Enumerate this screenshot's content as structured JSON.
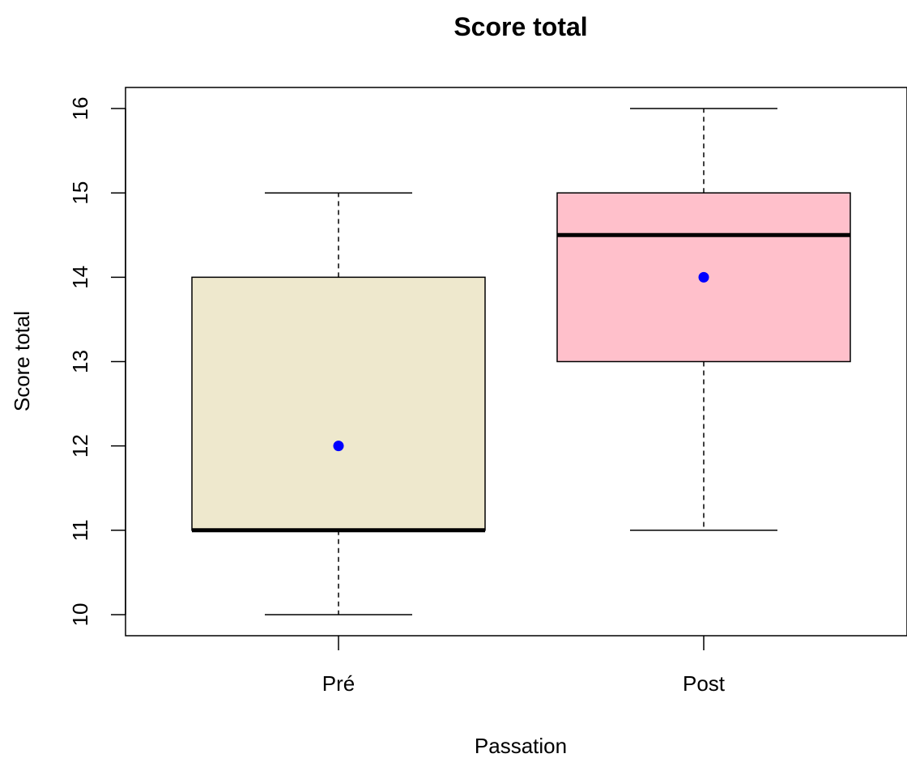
{
  "chart_data": {
    "type": "boxplot",
    "title": "Score total",
    "xlabel": "Passation",
    "ylabel": "Score total",
    "ylim": [
      9.75,
      16.25
    ],
    "yticks": [
      10,
      11,
      12,
      13,
      14,
      15,
      16
    ],
    "categories": [
      "Pré",
      "Post"
    ],
    "boxes": [
      {
        "category": "Pré",
        "whisker_low": 10,
        "q1": 11,
        "median": 11,
        "q3": 14,
        "whisker_high": 15,
        "mean": 12,
        "fill": "#EEE8CD"
      },
      {
        "category": "Post",
        "whisker_low": 11,
        "q1": 13,
        "median": 14.5,
        "q3": 15,
        "whisker_high": 16,
        "mean": 14,
        "fill": "#FFC0CB"
      }
    ],
    "mean_marker_color": "#0000FF",
    "grid": false,
    "legend": "none"
  }
}
